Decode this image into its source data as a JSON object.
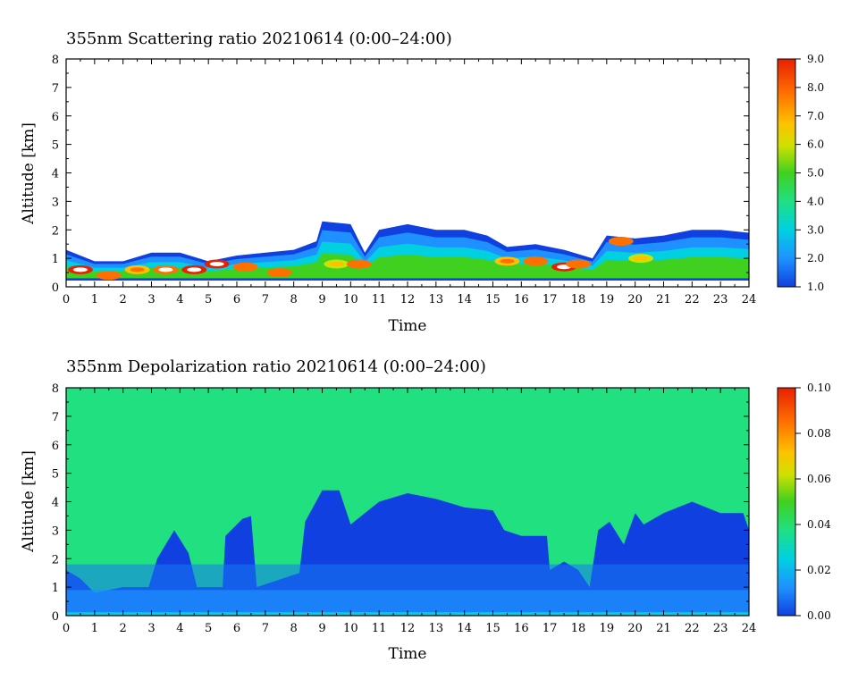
{
  "chart_data": [
    {
      "type": "heatmap",
      "title": "355nm Scattering ratio  20210614 (0:00–24:00)",
      "xlabel": "Time",
      "ylabel": "Altitude [km]",
      "xlim": [
        0,
        24
      ],
      "ylim": [
        0,
        8
      ],
      "x_ticks": [
        "0",
        "1",
        "2",
        "3",
        "4",
        "5",
        "6",
        "7",
        "8",
        "9",
        "10",
        "11",
        "12",
        "13",
        "14",
        "15",
        "16",
        "17",
        "18",
        "19",
        "20",
        "21",
        "22",
        "23",
        "24"
      ],
      "y_ticks": [
        "0",
        "1",
        "2",
        "3",
        "4",
        "5",
        "6",
        "7",
        "8"
      ],
      "colorbar": {
        "min": 1.0,
        "max": 9.0,
        "labels": [
          "1.0",
          "2.0",
          "3.0",
          "4.0",
          "5.0",
          "6.0",
          "7.0",
          "8.0",
          "9.0"
        ]
      },
      "background_color": "#ffffff",
      "layer_top_km": [
        [
          0,
          1.3
        ],
        [
          1,
          0.9
        ],
        [
          2,
          0.9
        ],
        [
          3,
          1.2
        ],
        [
          4,
          1.2
        ],
        [
          5,
          0.9
        ],
        [
          6,
          1.1
        ],
        [
          7,
          1.2
        ],
        [
          8,
          1.3
        ],
        [
          8.8,
          1.6
        ],
        [
          9,
          2.3
        ],
        [
          10,
          2.2
        ],
        [
          10.5,
          1.2
        ],
        [
          11,
          2.0
        ],
        [
          12,
          2.2
        ],
        [
          13,
          2.0
        ],
        [
          14,
          2.0
        ],
        [
          14.8,
          1.8
        ],
        [
          15.5,
          1.4
        ],
        [
          16.5,
          1.5
        ],
        [
          17.5,
          1.3
        ],
        [
          18.5,
          1.0
        ],
        [
          19,
          1.8
        ],
        [
          20,
          1.7
        ],
        [
          21,
          1.8
        ],
        [
          22,
          2.0
        ],
        [
          23,
          2.0
        ],
        [
          24,
          1.9
        ]
      ],
      "high_values": [
        {
          "t": 0.5,
          "z": 0.6,
          "v": 9.0
        },
        {
          "t": 1.5,
          "z": 0.4,
          "v": 8.0
        },
        {
          "t": 2.5,
          "z": 0.6,
          "v": 7.0
        },
        {
          "t": 3.5,
          "z": 0.6,
          "v": 8.5
        },
        {
          "t": 4.5,
          "z": 0.6,
          "v": 9.0
        },
        {
          "t": 5.3,
          "z": 0.8,
          "v": 9.0
        },
        {
          "t": 6.3,
          "z": 0.7,
          "v": 8.0
        },
        {
          "t": 7.5,
          "z": 0.5,
          "v": 8.0
        },
        {
          "t": 9.5,
          "z": 0.8,
          "v": 6.0
        },
        {
          "t": 10.3,
          "z": 0.8,
          "v": 8.0
        },
        {
          "t": 15.5,
          "z": 0.9,
          "v": 7.0
        },
        {
          "t": 16.5,
          "z": 0.9,
          "v": 8.0
        },
        {
          "t": 17.5,
          "z": 0.7,
          "v": 9.0
        },
        {
          "t": 18.0,
          "z": 0.8,
          "v": 8.0
        },
        {
          "t": 19.5,
          "z": 1.6,
          "v": 8.0
        },
        {
          "t": 20.2,
          "z": 1.0,
          "v": 6.0
        }
      ]
    },
    {
      "type": "heatmap",
      "title": "355nm Depolarization ratio  20210614 (0:00–24:00)",
      "xlabel": "Time",
      "ylabel": "Altitude [km]",
      "xlim": [
        0,
        24
      ],
      "ylim": [
        0,
        8
      ],
      "x_ticks": [
        "0",
        "1",
        "2",
        "3",
        "4",
        "5",
        "6",
        "7",
        "8",
        "9",
        "10",
        "11",
        "12",
        "13",
        "14",
        "15",
        "16",
        "17",
        "18",
        "19",
        "20",
        "21",
        "22",
        "23",
        "24"
      ],
      "y_ticks": [
        "0",
        "1",
        "2",
        "3",
        "4",
        "5",
        "6",
        "7",
        "8"
      ],
      "colorbar": {
        "min": 0.0,
        "max": 0.1,
        "labels": [
          "0.00",
          "0.02",
          "0.04",
          "0.06",
          "0.08",
          "0.10"
        ]
      },
      "background_value": 0.04,
      "layer_top_km": [
        [
          0,
          1.6
        ],
        [
          0.5,
          1.3
        ],
        [
          1,
          0.8
        ],
        [
          2,
          1.0
        ],
        [
          2.9,
          1.0
        ],
        [
          3.2,
          2.0
        ],
        [
          3.8,
          3.0
        ],
        [
          4.3,
          2.2
        ],
        [
          4.6,
          1.0
        ],
        [
          5.5,
          1.0
        ],
        [
          5.6,
          2.8
        ],
        [
          6.2,
          3.4
        ],
        [
          6.5,
          3.5
        ],
        [
          6.7,
          1.0
        ],
        [
          8.2,
          1.5
        ],
        [
          8.4,
          3.3
        ],
        [
          9.0,
          4.4
        ],
        [
          9.6,
          4.4
        ],
        [
          10.0,
          3.2
        ],
        [
          11.0,
          4.0
        ],
        [
          12.0,
          4.3
        ],
        [
          13.0,
          4.1
        ],
        [
          14.0,
          3.8
        ],
        [
          15.0,
          3.7
        ],
        [
          15.4,
          3.0
        ],
        [
          16.0,
          2.8
        ],
        [
          16.9,
          2.8
        ],
        [
          17.0,
          1.6
        ],
        [
          17.5,
          1.9
        ],
        [
          18.0,
          1.6
        ],
        [
          18.4,
          1.0
        ],
        [
          18.7,
          3.0
        ],
        [
          19.1,
          3.3
        ],
        [
          19.6,
          2.5
        ],
        [
          20.0,
          3.6
        ],
        [
          20.3,
          3.2
        ],
        [
          21.0,
          3.6
        ],
        [
          22.0,
          4.0
        ],
        [
          23.0,
          3.6
        ],
        [
          23.8,
          3.6
        ],
        [
          24.0,
          3.0
        ]
      ]
    }
  ]
}
